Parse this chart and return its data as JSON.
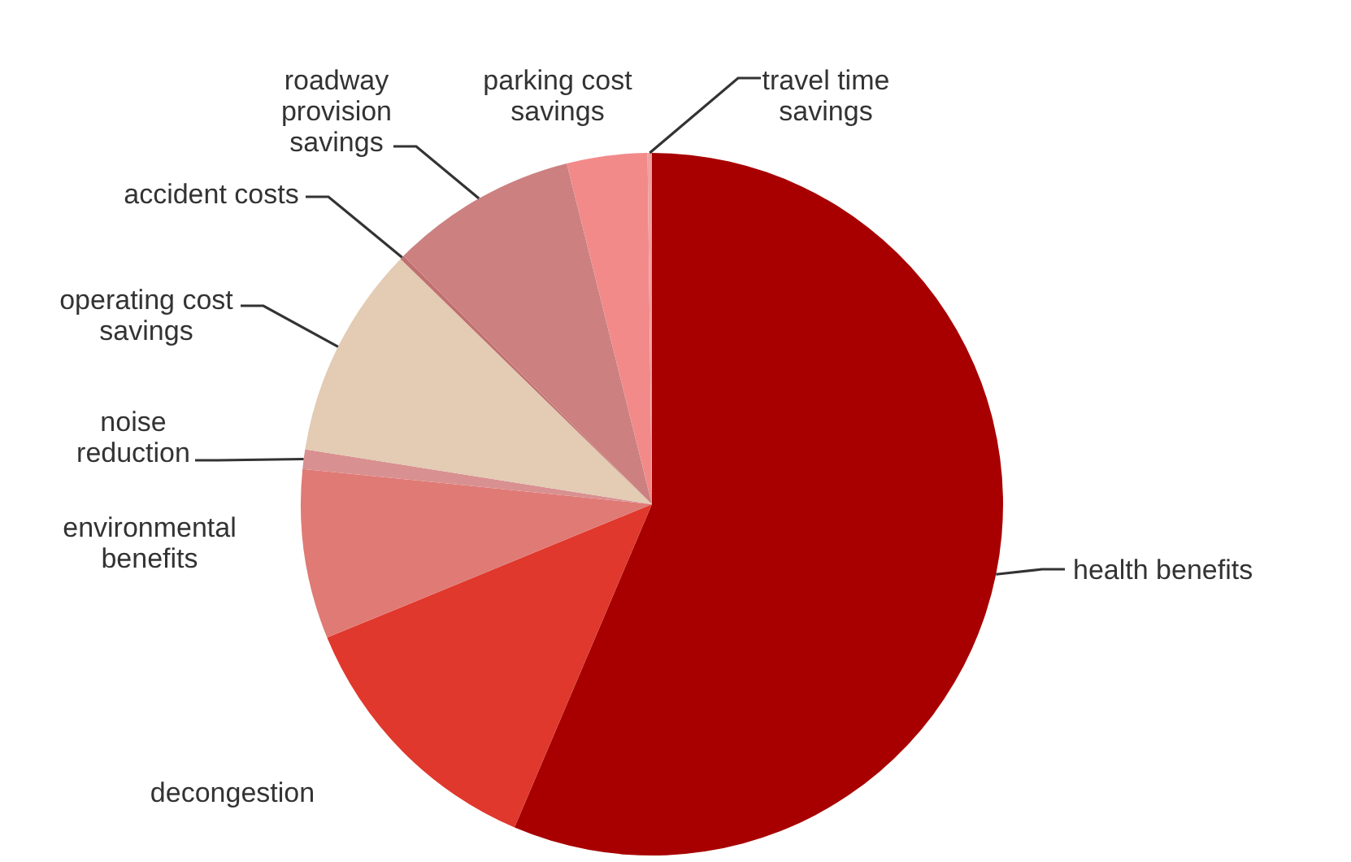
{
  "chart_data": {
    "type": "pie",
    "categories": [
      "health benefits",
      "decongestion",
      "environmental benefits",
      "noise reduction",
      "operating cost savings",
      "accident costs",
      "roadway provision savings",
      "parking cost savings",
      "travel time savings"
    ],
    "values": [
      56.4,
      12.4,
      7.8,
      0.9,
      9.8,
      0.2,
      8.6,
      3.7,
      0.2
    ],
    "colors": [
      "#a80000",
      "#e0382c",
      "#e07a75",
      "#d99090",
      "#e3cbb4",
      "#c07070",
      "#cc8080",
      "#f28a8a",
      "#f0a0a0"
    ]
  }
}
